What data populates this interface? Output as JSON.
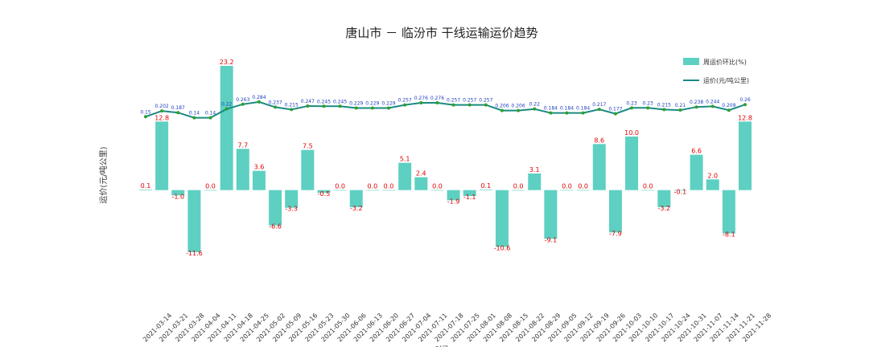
{
  "chart_data": {
    "type": "bar+line",
    "title": "唐山市 － 临汾市 干线运输运价趋势",
    "ylabel": "运价(元/吨公里)",
    "xlabel": "时间",
    "legend": {
      "placement": "top-right",
      "bar_series": "周运价环比(%)",
      "line_series": "运价(元/吨公里)"
    },
    "colors": {
      "bar": "#5dd0c2",
      "line": "#1a8a82",
      "bar_label": "#e00000",
      "point": "#2ca02c",
      "price_label": "#1f3fbf"
    },
    "categories": [
      "2021-03-14",
      "2021-03-21",
      "2021-03-28",
      "2021-04-04",
      "2021-04-11",
      "2021-04-18",
      "2021-04-25",
      "2021-05-02",
      "2021-05-09",
      "2021-05-16",
      "2021-05-23",
      "2021-05-30",
      "2021-06-06",
      "2021-06-13",
      "2021-06-20",
      "2021-06-27",
      "2021-07-04",
      "2021-07-11",
      "2021-07-18",
      "2021-07-25",
      "2021-08-01",
      "2021-08-08",
      "2021-08-15",
      "2021-08-22",
      "2021-08-29",
      "2021-09-05",
      "2021-09-12",
      "2021-09-19",
      "2021-09-26",
      "2021-10-03",
      "2021-10-10",
      "2021-10-17",
      "2021-10-24",
      "2021-10-31",
      "2021-11-07",
      "2021-11-14",
      "2021-11-21",
      "2021-11-28"
    ],
    "bar_values": [
      0.1,
      12.8,
      -1.0,
      -11.6,
      0.0,
      23.2,
      7.7,
      3.6,
      -6.6,
      -3.3,
      7.5,
      -0.5,
      0.0,
      -3.2,
      0.0,
      0.0,
      5.1,
      2.4,
      0.0,
      -1.9,
      -1.1,
      0.1,
      -10.6,
      0.0,
      3.1,
      -9.1,
      0.0,
      0.0,
      8.6,
      -7.9,
      10.0,
      0.0,
      -3.2,
      -0.1,
      6.6,
      2.0,
      -8.1,
      12.8
    ],
    "bar_value_labels": [
      "0.1",
      "12.8",
      "-1.0",
      "-11.6",
      "0.0",
      "23.2",
      "7.7",
      "3.6",
      "-6.6",
      "-3.3",
      "7.5",
      "-0.5",
      "0.0",
      "-3.2",
      "0.0",
      "0.0",
      "5.1",
      "2.4",
      "0.0",
      "-1.9",
      "-1.1",
      "0.1",
      "-10.6",
      "0.0",
      "3.1",
      "-9.1",
      "0.0",
      "0.0",
      "8.6",
      "-7.9",
      "10.0",
      "0.0",
      "-3.2",
      "-0.1",
      "6.6",
      "2.0",
      "-8.1",
      "12.8"
    ],
    "bar_ylim": [
      -14,
      25
    ],
    "price_values": [
      0.15,
      0.202,
      0.187,
      0.14,
      0.14,
      0.22,
      0.263,
      0.284,
      0.237,
      0.215,
      0.247,
      0.245,
      0.245,
      0.229,
      0.229,
      0.229,
      0.257,
      0.276,
      0.276,
      0.257,
      0.257,
      0.257,
      0.206,
      0.206,
      0.22,
      0.184,
      0.184,
      0.184,
      0.217,
      0.177,
      0.23,
      0.23,
      0.215,
      0.21,
      0.238,
      0.244,
      0.209,
      0.26
    ],
    "price_value_labels": [
      "0.15",
      "0.202",
      "0.187",
      "0.14",
      "0.14",
      "0.22",
      "0.263",
      "0.284",
      "0.237",
      "0.215",
      "0.247",
      "0.245",
      "0.245",
      "0.229",
      "0.229",
      "0.229",
      "0.257",
      "0.276",
      "0.276",
      "0.257",
      "0.257",
      "0.257",
      "0.206",
      "0.206",
      "0.22",
      "0.184",
      "0.184",
      "0.184",
      "0.217",
      "0.177",
      "0.23",
      "0.23",
      "0.215",
      "0.21",
      "0.238",
      "0.244",
      "0.209",
      "0.26"
    ],
    "price_ylim": [
      -1.2,
      0.7
    ],
    "grid": false
  }
}
